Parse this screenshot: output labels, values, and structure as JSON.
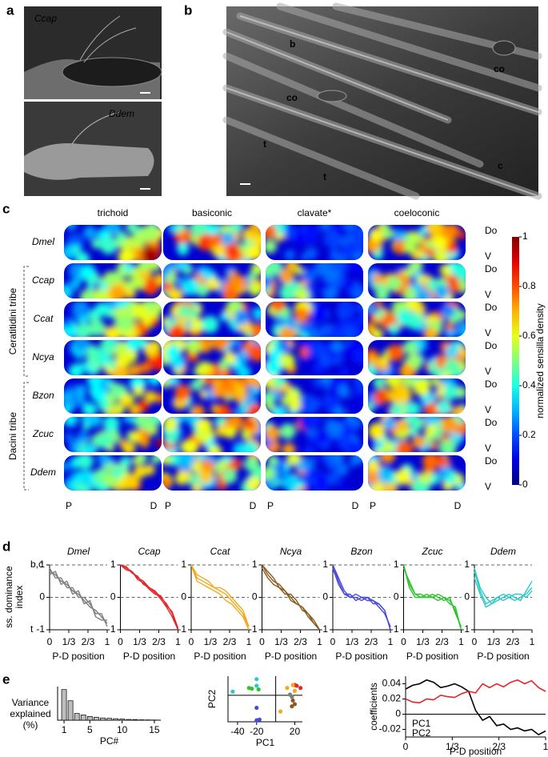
{
  "panel_a": {
    "label": "a",
    "images": [
      "Ccap",
      "Ddem"
    ]
  },
  "panel_b": {
    "label": "b",
    "annotations": [
      "b",
      "co",
      "co",
      "t",
      "t",
      "c"
    ]
  },
  "panel_c": {
    "label": "c",
    "columns": [
      "trichoid",
      "basiconic",
      "clavate*",
      "coeloconic"
    ],
    "rows": [
      "Dmel",
      "Ccap",
      "Ccat",
      "Ncya",
      "Bzon",
      "Zcuc",
      "Ddem"
    ],
    "groups": [
      "Ceratitidini tribe",
      "Dacini tribe"
    ],
    "dorsal": "Do",
    "ventral": "V",
    "proximal": "P",
    "distal": "D",
    "colorbar": {
      "label": "normalized sensilla density",
      "lim": [
        0,
        1
      ],
      "ticks": [
        0,
        0.2,
        0.4,
        0.6,
        0.8,
        1
      ]
    }
  },
  "panel_d_label": "d",
  "panel_e_label": "e",
  "chart_data": [
    {
      "type": "line",
      "title": "Dmel",
      "x_label": "P-D position",
      "y_label": [
        "ss. dominance",
        "index"
      ],
      "y_tick_notes": [
        {
          "value": 1,
          "label": "b,c"
        },
        {
          "value": -1,
          "label": "t"
        }
      ],
      "x": [
        0,
        0.1,
        0.2,
        0.3,
        0.4,
        0.5,
        0.6,
        0.7,
        0.8,
        0.9,
        1
      ],
      "xlim": [
        0,
        1
      ],
      "xticks": [
        0,
        {
          "value": 0.3333,
          "label": "1/3"
        },
        {
          "value": 0.6667,
          "label": "2/3"
        },
        1
      ],
      "ylim": [
        -1,
        1
      ],
      "yticks": [
        -1,
        0,
        1
      ],
      "series": [
        {
          "color": "#7f7f7f",
          "values": [
            0.8,
            0.7,
            0.5,
            0.4,
            0.2,
            0.1,
            -0.1,
            -0.3,
            -0.4,
            -0.6,
            -0.8
          ]
        },
        {
          "color": "#7f7f7f",
          "values": [
            0.9,
            0.6,
            0.6,
            0.3,
            0.3,
            0,
            0,
            -0.2,
            -0.5,
            -0.5,
            -0.9
          ]
        },
        {
          "color": "#7f7f7f",
          "values": [
            0.7,
            0.8,
            0.4,
            0.5,
            0.1,
            0.2,
            -0.2,
            -0.1,
            -0.6,
            -0.7,
            -0.7
          ]
        }
      ]
    },
    {
      "type": "line",
      "title": "Ccap",
      "x_label": "P-D position",
      "x": [
        0,
        0.1,
        0.2,
        0.3,
        0.4,
        0.5,
        0.6,
        0.7,
        0.8,
        0.9,
        1
      ],
      "xlim": [
        0,
        1
      ],
      "xticks": [
        0,
        {
          "value": 0.3333,
          "label": "1/3"
        },
        {
          "value": 0.6667,
          "label": "2/3"
        },
        1
      ],
      "ylim": [
        -1,
        1
      ],
      "yticks": [
        -1,
        0,
        1
      ],
      "series": [
        {
          "color": "#e8232a",
          "values": [
            1,
            0.9,
            0.8,
            0.6,
            0.5,
            0.3,
            0.2,
            0,
            -0.2,
            -0.5,
            -1
          ]
        },
        {
          "color": "#e8232a",
          "values": [
            1,
            0.95,
            0.75,
            0.65,
            0.4,
            0.3,
            0.15,
            -0.05,
            -0.3,
            -0.6,
            -1
          ]
        },
        {
          "color": "#e8232a",
          "values": [
            1,
            0.85,
            0.8,
            0.55,
            0.45,
            0.25,
            0.1,
            0.05,
            -0.25,
            -0.45,
            -0.95
          ]
        }
      ]
    },
    {
      "type": "line",
      "title": "Ccat",
      "x_label": "P-D position",
      "x": [
        0,
        0.1,
        0.2,
        0.3,
        0.4,
        0.5,
        0.6,
        0.7,
        0.8,
        0.9,
        1
      ],
      "xlim": [
        0,
        1
      ],
      "xticks": [
        0,
        {
          "value": 0.3333,
          "label": "1/3"
        },
        {
          "value": 0.6667,
          "label": "2/3"
        },
        1
      ],
      "ylim": [
        -1,
        1
      ],
      "yticks": [
        -1,
        0,
        1
      ],
      "series": [
        {
          "color": "#f2a91c",
          "values": [
            1,
            0.6,
            0.5,
            0.4,
            0.3,
            0.2,
            0.1,
            -0.1,
            -0.3,
            -0.5,
            -1
          ]
        },
        {
          "color": "#f2a91c",
          "values": [
            1,
            0.7,
            0.6,
            0.5,
            0.3,
            0.3,
            0.2,
            0,
            -0.2,
            -0.4,
            -0.9
          ]
        },
        {
          "color": "#f2a91c",
          "values": [
            1,
            0.5,
            0.4,
            0.3,
            0.2,
            0.1,
            -0.1,
            -0.2,
            -0.4,
            -0.6,
            -1
          ]
        }
      ]
    },
    {
      "type": "line",
      "title": "Ncya",
      "x_label": "P-D position",
      "x": [
        0,
        0.1,
        0.2,
        0.3,
        0.4,
        0.5,
        0.6,
        0.7,
        0.8,
        0.9,
        1
      ],
      "xlim": [
        0,
        1
      ],
      "xticks": [
        0,
        {
          "value": 0.3333,
          "label": "1/3"
        },
        {
          "value": 0.6667,
          "label": "2/3"
        },
        1
      ],
      "ylim": [
        -1,
        1
      ],
      "yticks": [
        -1,
        0,
        1
      ],
      "series": [
        {
          "color": "#8b5a1e",
          "values": [
            1,
            0.7,
            0.5,
            0.4,
            0.2,
            0,
            -0.2,
            -0.3,
            -0.5,
            -0.7,
            -1
          ]
        },
        {
          "color": "#8b5a1e",
          "values": [
            1,
            0.8,
            0.6,
            0.3,
            0.1,
            0.1,
            -0.1,
            -0.4,
            -0.5,
            -0.8,
            -1
          ]
        },
        {
          "color": "#8b5a1e",
          "values": [
            0.9,
            0.6,
            0.4,
            0.3,
            0.2,
            -0.1,
            -0.2,
            -0.3,
            -0.6,
            -0.8,
            -1
          ]
        }
      ]
    },
    {
      "type": "line",
      "title": "Bzon",
      "x_label": "P-D position",
      "x": [
        0,
        0.1,
        0.2,
        0.3,
        0.4,
        0.5,
        0.6,
        0.7,
        0.8,
        0.9,
        1
      ],
      "xlim": [
        0,
        1
      ],
      "xticks": [
        0,
        {
          "value": 0.3333,
          "label": "1/3"
        },
        {
          "value": 0.6667,
          "label": "2/3"
        },
        1
      ],
      "ylim": [
        -1,
        1
      ],
      "yticks": [
        -1,
        0,
        1
      ],
      "series": [
        {
          "color": "#4a4adb",
          "values": [
            1,
            0.5,
            0.1,
            0,
            0,
            -0.1,
            0,
            -0.1,
            -0.2,
            -0.4,
            -1
          ]
        },
        {
          "color": "#4a4adb",
          "values": [
            0.9,
            0.4,
            0.1,
            0.1,
            -0.1,
            0,
            -0.1,
            -0.1,
            -0.3,
            -0.5,
            -0.9
          ]
        },
        {
          "color": "#4a4adb",
          "values": [
            1,
            0.6,
            0.2,
            0,
            0.1,
            0,
            0,
            -0.2,
            -0.2,
            -0.4,
            -1
          ]
        }
      ]
    },
    {
      "type": "line",
      "title": "Zcuc",
      "x_label": "P-D position",
      "x": [
        0,
        0.1,
        0.2,
        0.3,
        0.4,
        0.5,
        0.6,
        0.7,
        0.8,
        0.9,
        1
      ],
      "xlim": [
        0,
        1
      ],
      "xticks": [
        0,
        {
          "value": 0.3333,
          "label": "1/3"
        },
        {
          "value": 0.6667,
          "label": "2/3"
        },
        1
      ],
      "ylim": [
        -1,
        1
      ],
      "yticks": [
        -1,
        0,
        1
      ],
      "series": [
        {
          "color": "#2fc42f",
          "values": [
            1,
            0.4,
            0.1,
            0,
            0.1,
            0,
            -0.1,
            0,
            -0.1,
            -0.4,
            -1
          ]
        },
        {
          "color": "#2fc42f",
          "values": [
            1,
            0.3,
            0,
            0,
            0,
            0.1,
            0,
            -0.1,
            0,
            -0.5,
            -0.9
          ]
        },
        {
          "color": "#2fc42f",
          "values": [
            0.9,
            0.5,
            0.1,
            0.1,
            0,
            0,
            0.1,
            0,
            -0.2,
            -0.3,
            -1
          ]
        }
      ]
    },
    {
      "type": "line",
      "title": "Ddem",
      "x_label": "P-D position",
      "x": [
        0,
        0.1,
        0.2,
        0.3,
        0.4,
        0.5,
        0.6,
        0.7,
        0.8,
        0.9,
        1
      ],
      "xlim": [
        0,
        1
      ],
      "xticks": [
        0,
        {
          "value": 0.3333,
          "label": "1/3"
        },
        {
          "value": 0.6667,
          "label": "2/3"
        },
        1
      ],
      "ylim": [
        -1,
        1
      ],
      "yticks": [
        -1,
        0,
        1
      ],
      "series": [
        {
          "color": "#2ec8c8",
          "values": [
            0.8,
            0.2,
            -0.2,
            -0.1,
            0,
            0.1,
            0,
            -0.1,
            0,
            0.1,
            0.3
          ]
        },
        {
          "color": "#2ec8c8",
          "values": [
            0.6,
            0.1,
            -0.3,
            -0.2,
            -0.1,
            0,
            0.1,
            0,
            -0.1,
            0.2,
            0.5
          ]
        },
        {
          "color": "#2ec8c8",
          "values": [
            0.9,
            0.3,
            0,
            -0.2,
            0,
            -0.1,
            0,
            0.1,
            0.1,
            0,
            0.2
          ]
        }
      ]
    },
    {
      "type": "bar",
      "x_label": "PC#",
      "y_label": [
        "Variance",
        "explained",
        "(%)"
      ],
      "x": [
        1,
        2,
        3,
        4,
        5,
        6,
        7,
        8,
        9,
        10,
        11,
        12,
        13,
        14,
        15
      ],
      "values": [
        41,
        26,
        9,
        7,
        5,
        4,
        3,
        2.5,
        2,
        1.5,
        1,
        0.8,
        0.5,
        0.4,
        0.3
      ],
      "color": "#bdbdbd",
      "xlim": [
        0,
        16
      ],
      "xticks": [
        1,
        5,
        10,
        15
      ],
      "ylim": [
        0,
        45
      ]
    },
    {
      "type": "scatter",
      "x_label": "PC1",
      "y_label": "PC2",
      "xlim": [
        -50,
        28
      ],
      "ylim": [
        -36,
        26
      ],
      "xticks": [
        -40,
        -20,
        20
      ],
      "series": [
        {
          "color": "#7f7f7f",
          "x": [
            15,
            17
          ],
          "values": [
            1,
            -2
          ]
        },
        {
          "color": "#e8232a",
          "x": [
            20,
            22,
            26
          ],
          "values": [
            14,
            13,
            10
          ]
        },
        {
          "color": "#f2a91c",
          "x": [
            12,
            18,
            20,
            5
          ],
          "values": [
            10,
            14,
            6,
            -22
          ]
        },
        {
          "color": "#8b5a1e",
          "x": [
            18,
            20,
            17
          ],
          "values": [
            -7,
            -12,
            -15
          ]
        },
        {
          "color": "#4a4adb",
          "x": [
            -20,
            -17,
            -20
          ],
          "values": [
            -17,
            -33,
            -34
          ]
        },
        {
          "color": "#2fc42f",
          "x": [
            -28,
            -25,
            -18
          ],
          "values": [
            10,
            9,
            8
          ]
        },
        {
          "color": "#2ec8c8",
          "x": [
            -20,
            -20,
            -45
          ],
          "values": [
            22,
            13,
            5
          ]
        }
      ]
    },
    {
      "type": "line",
      "x_label": "P-D position",
      "y_label": "coefficients",
      "x": [
        0,
        0.05,
        0.1,
        0.15,
        0.2,
        0.25,
        0.3,
        0.35,
        0.4,
        0.45,
        0.5,
        0.55,
        0.6,
        0.65,
        0.7,
        0.75,
        0.8,
        0.85,
        0.9,
        0.95,
        1
      ],
      "xlim": [
        0,
        1
      ],
      "xticks": [
        0,
        {
          "value": 0.3333,
          "label": "1/3"
        },
        {
          "value": 0.6667,
          "label": "2/3"
        },
        1
      ],
      "ylim": [
        -0.03,
        0.05
      ],
      "yticks": [
        -0.02,
        0,
        0.02,
        0.04
      ],
      "series": [
        {
          "name": "PC1",
          "color": "#000000",
          "values": [
            0.033,
            0.038,
            0.04,
            0.045,
            0.042,
            0.035,
            0.037,
            0.04,
            0.036,
            0.03,
            0.005,
            -0.008,
            -0.003,
            -0.015,
            -0.013,
            -0.02,
            -0.018,
            -0.022,
            -0.02,
            -0.027,
            -0.022
          ]
        },
        {
          "name": "PC2",
          "color": "#e8232a",
          "values": [
            0.02,
            0.016,
            0.015,
            0.02,
            0.019,
            0.025,
            0.023,
            0.022,
            0.027,
            0.03,
            0.028,
            0.04,
            0.035,
            0.04,
            0.036,
            0.042,
            0.045,
            0.04,
            0.044,
            0.035,
            0.03
          ]
        }
      ]
    }
  ]
}
